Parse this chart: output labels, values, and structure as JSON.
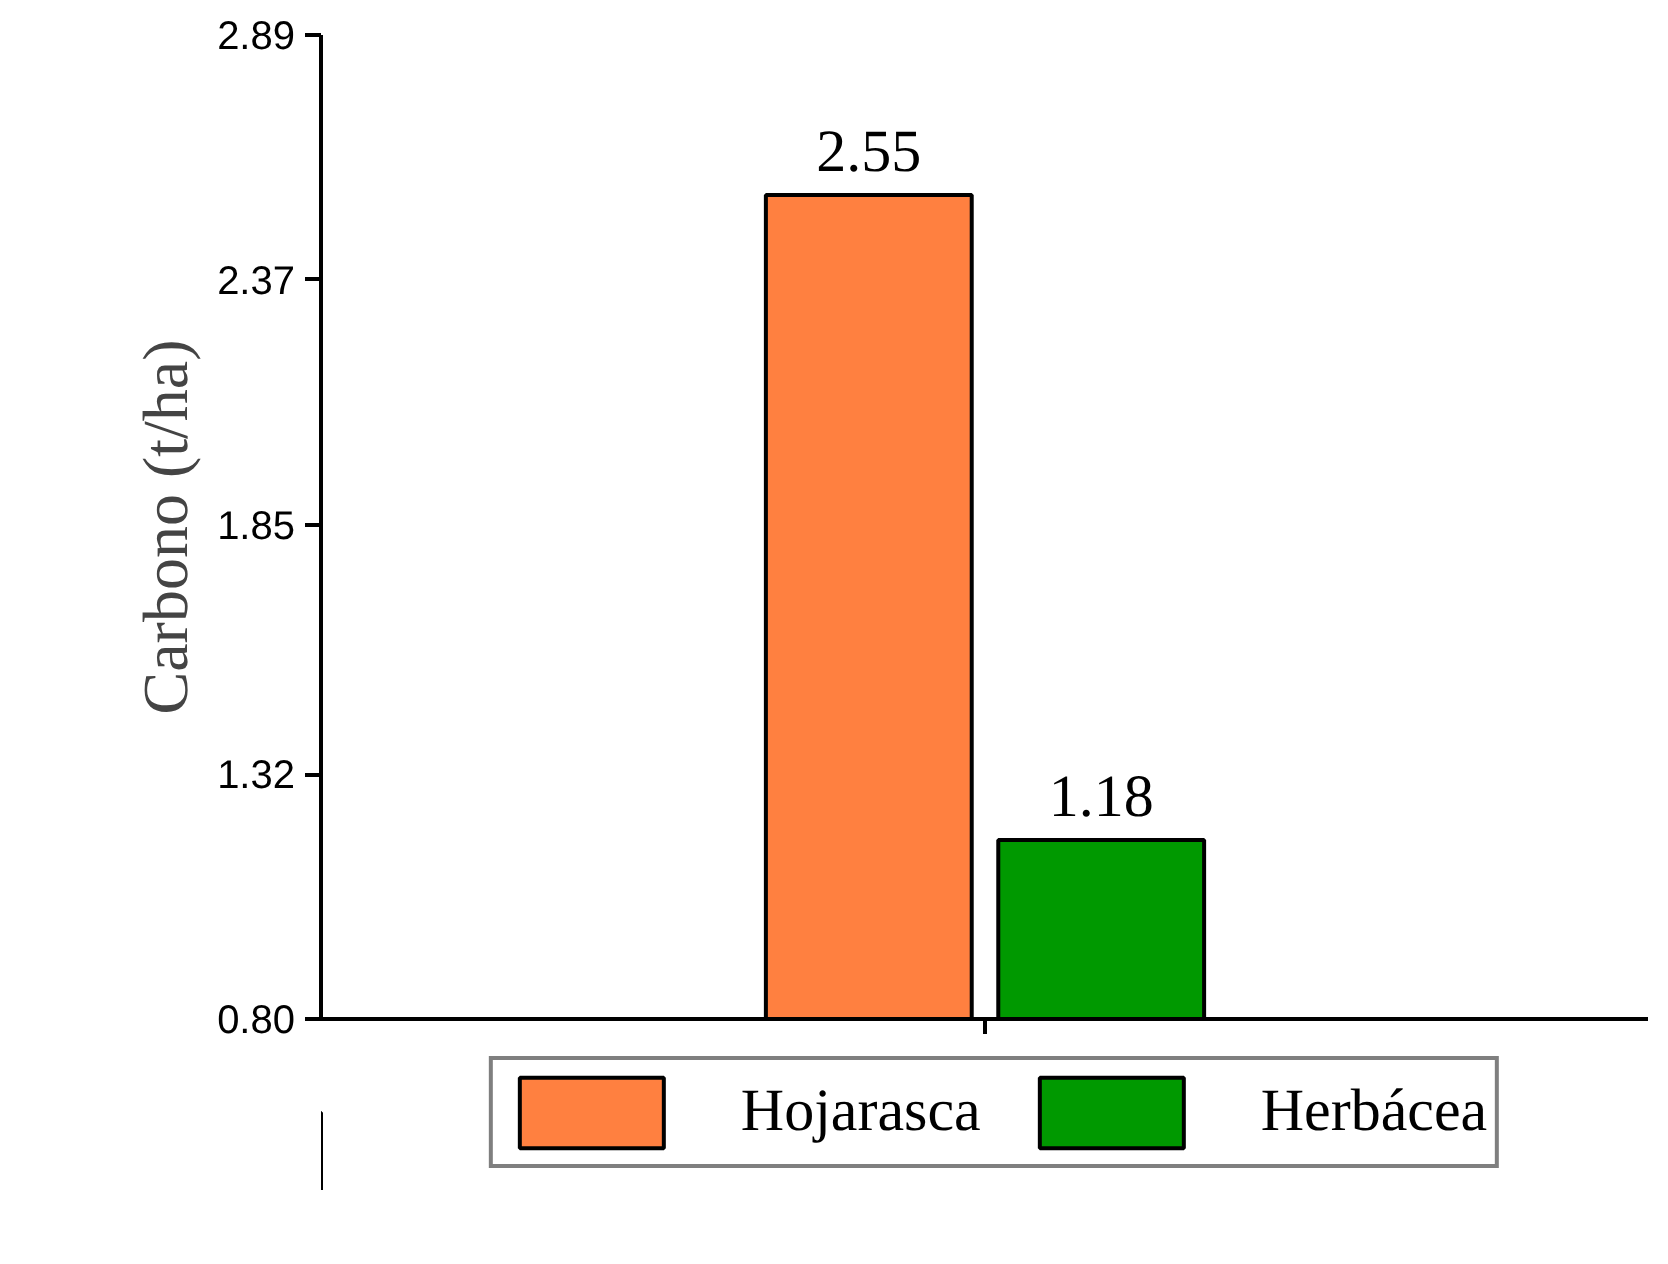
{
  "chart_data": {
    "type": "bar",
    "ylabel": "Carbono (t/ha)",
    "categories": [
      null
    ],
    "series": [
      {
        "name": "Hojarasca",
        "color": "#ff8040",
        "values": [
          2.55
        ]
      },
      {
        "name": "Herbácea",
        "color": "#009900",
        "values": [
          1.18
        ]
      }
    ],
    "ylim": [
      0.8,
      2.89
    ],
    "yticks": [
      {
        "value": 0.8,
        "label": "0.80"
      },
      1.32,
      1.85,
      2.37,
      2.89
    ],
    "data_labels": true,
    "legend": "bottom",
    "grid": false
  }
}
